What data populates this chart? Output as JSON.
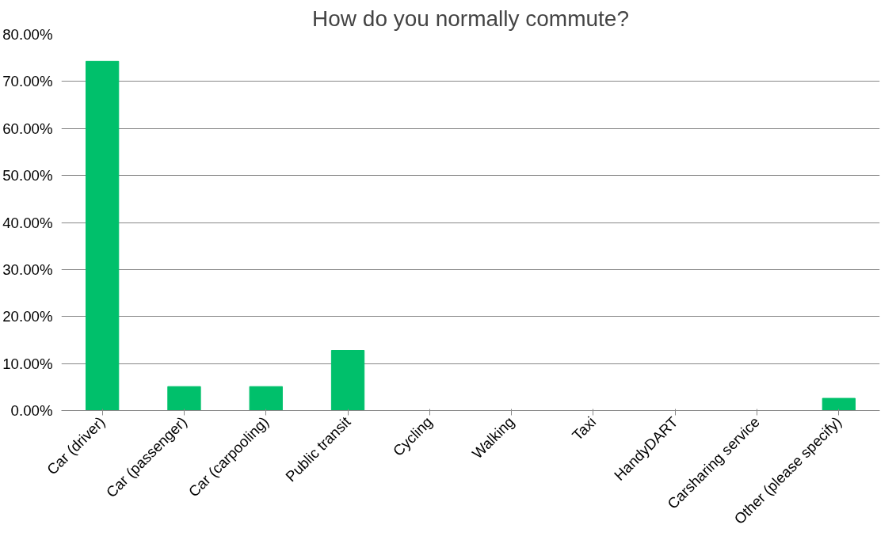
{
  "chart_data": {
    "type": "bar",
    "title": "How do you normally commute?",
    "categories": [
      "Car (driver)",
      "Car (passenger)",
      "Car (carpooling)",
      "Public transit",
      "Cycling",
      "Walking",
      "Taxi",
      "HandyDART",
      "Carsharing service",
      "Other (please specify)"
    ],
    "values": [
      74.3,
      5.1,
      5.1,
      12.8,
      0,
      0,
      0,
      0,
      0,
      2.6
    ],
    "color": "#00c06b",
    "ylim": [
      0,
      80
    ],
    "yticks": [
      {
        "value": 0,
        "label": "0.00%"
      },
      {
        "value": 10,
        "label": "10.00%"
      },
      {
        "value": 20,
        "label": "20.00%"
      },
      {
        "value": 30,
        "label": "30.00%"
      },
      {
        "value": 40,
        "label": "40.00%"
      },
      {
        "value": 50,
        "label": "50.00%"
      },
      {
        "value": 60,
        "label": "60.00%"
      },
      {
        "value": 70,
        "label": "70.00%"
      },
      {
        "value": 80,
        "label": "80.00%"
      }
    ],
    "grid": "y"
  }
}
